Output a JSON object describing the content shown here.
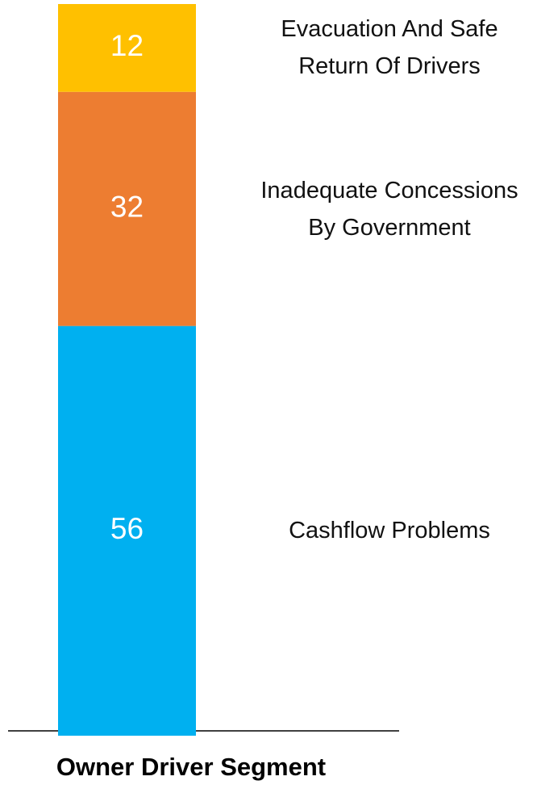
{
  "chart_data": {
    "type": "stacked_bar",
    "categories": [
      "Owner Driver Segment"
    ],
    "ylim": [
      0,
      100
    ],
    "series": [
      {
        "name": "Cashflow Problems",
        "color": "#00b0f0",
        "values": [
          56
        ]
      },
      {
        "name": "Inadequate Concessions By Government",
        "color": "#ed7d31",
        "values": [
          32
        ]
      },
      {
        "name": "Evacuation And Safe Return Of Drivers",
        "color": "#ffc000",
        "values": [
          12
        ]
      }
    ]
  }
}
